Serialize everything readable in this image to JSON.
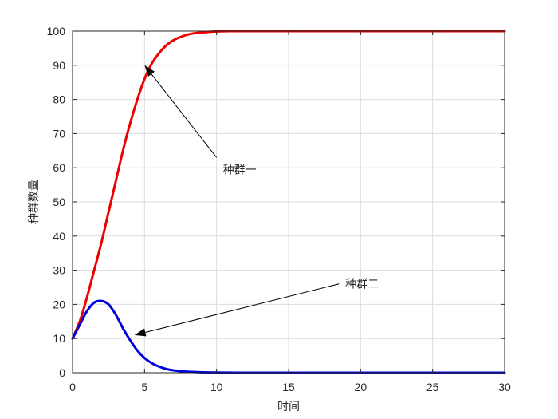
{
  "chart_data": {
    "type": "line",
    "title": "",
    "xlabel": "时间",
    "ylabel": "种群数量",
    "xlim": [
      0,
      30
    ],
    "ylim": [
      0,
      100
    ],
    "xticks": [
      0,
      5,
      10,
      15,
      20,
      25,
      30
    ],
    "yticks": [
      0,
      10,
      20,
      30,
      40,
      50,
      60,
      70,
      80,
      90,
      100
    ],
    "grid": true,
    "series": [
      {
        "color": "#ee0000",
        "x": [
          0,
          0.5,
          1,
          1.5,
          2,
          2.5,
          3,
          3.5,
          4,
          4.5,
          5,
          5.5,
          6,
          6.5,
          7,
          7.5,
          8,
          8.5,
          9,
          9.5,
          10,
          11,
          12,
          13,
          14,
          15,
          20,
          25,
          30
        ],
        "y": [
          10,
          15,
          22,
          30,
          38,
          47,
          56,
          65,
          73,
          80,
          86,
          90.5,
          93.5,
          95.8,
          97.3,
          98.3,
          99,
          99.4,
          99.6,
          99.8,
          99.9,
          100,
          100,
          100,
          100,
          100,
          100,
          100,
          100
        ]
      },
      {
        "color": "#0000dd",
        "x": [
          0,
          0.5,
          1,
          1.5,
          2,
          2.5,
          3,
          3.5,
          4,
          4.5,
          5,
          5.5,
          6,
          6.5,
          7,
          7.5,
          8,
          8.5,
          9,
          9.5,
          10,
          11,
          12,
          15,
          20,
          25,
          30
        ],
        "y": [
          10,
          14,
          18,
          20.5,
          21,
          20,
          17,
          13,
          9.5,
          6.5,
          4.3,
          2.8,
          1.8,
          1.1,
          0.7,
          0.45,
          0.3,
          0.2,
          0.12,
          0.08,
          0.05,
          0.02,
          0,
          0,
          0,
          0,
          0
        ]
      }
    ],
    "annotations": [
      {
        "text": "种群一",
        "from": [
          10,
          63
        ],
        "to": [
          5,
          90
        ]
      },
      {
        "text": "种群二",
        "from": [
          18.5,
          26
        ],
        "to": [
          4.3,
          11
        ]
      }
    ]
  }
}
